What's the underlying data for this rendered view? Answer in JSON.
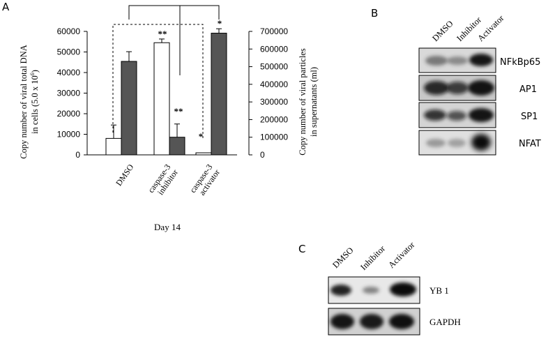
{
  "panel_a": {
    "label": "A",
    "left_axis_label_line1": "Copy number of viral total DNA",
    "left_axis_label_line2_prefix": "in cells (5.0 x 10",
    "left_axis_label_exp": "6",
    "left_axis_label_line2_suffix": ")",
    "right_axis_label_line1": "Copy number of viral particles",
    "right_axis_label_line2": "in supernatants (ml)",
    "x_caption": "Day 14",
    "category_labels": [
      [
        "DMSO"
      ],
      [
        "caspase-3",
        "inhibitor"
      ],
      [
        "caspase-3",
        "activator"
      ]
    ],
    "significance": [
      "**",
      "**",
      "*",
      "*"
    ]
  },
  "chart_data": {
    "type": "bar",
    "categories": [
      "DMSO",
      "caspase-3 inhibitor",
      "caspase-3 activator"
    ],
    "series": [
      {
        "axis": "left",
        "color": "#ffffff",
        "values": [
          8000,
          54500,
          1000
        ],
        "error": [
          6500,
          1800,
          0
        ]
      },
      {
        "axis": "right",
        "color": "#555555",
        "values": [
          530000,
          100000,
          690000
        ],
        "error": [
          55000,
          75000,
          25000
        ]
      }
    ],
    "ylim_left": [
      0,
      60000
    ],
    "left_ticks": [
      "0",
      "10000",
      "20000",
      "30000",
      "40000",
      "50000",
      "60000"
    ],
    "ylim_right": [
      0,
      700000
    ],
    "right_ticks": [
      "0",
      "100000",
      "200000",
      "300000",
      "400000",
      "500000",
      "600000",
      "700000"
    ]
  },
  "panel_b": {
    "label": "B",
    "lanes": [
      "DMSO",
      "Inhibitor",
      "Activator"
    ],
    "blots": [
      "NFkBp65",
      "AP1",
      "SP1",
      "NFAT"
    ]
  },
  "panel_c": {
    "label": "C",
    "lanes": [
      "DMSO",
      "Inhibitor",
      "Activator"
    ],
    "blots": [
      "YB 1",
      "GAPDH"
    ]
  }
}
